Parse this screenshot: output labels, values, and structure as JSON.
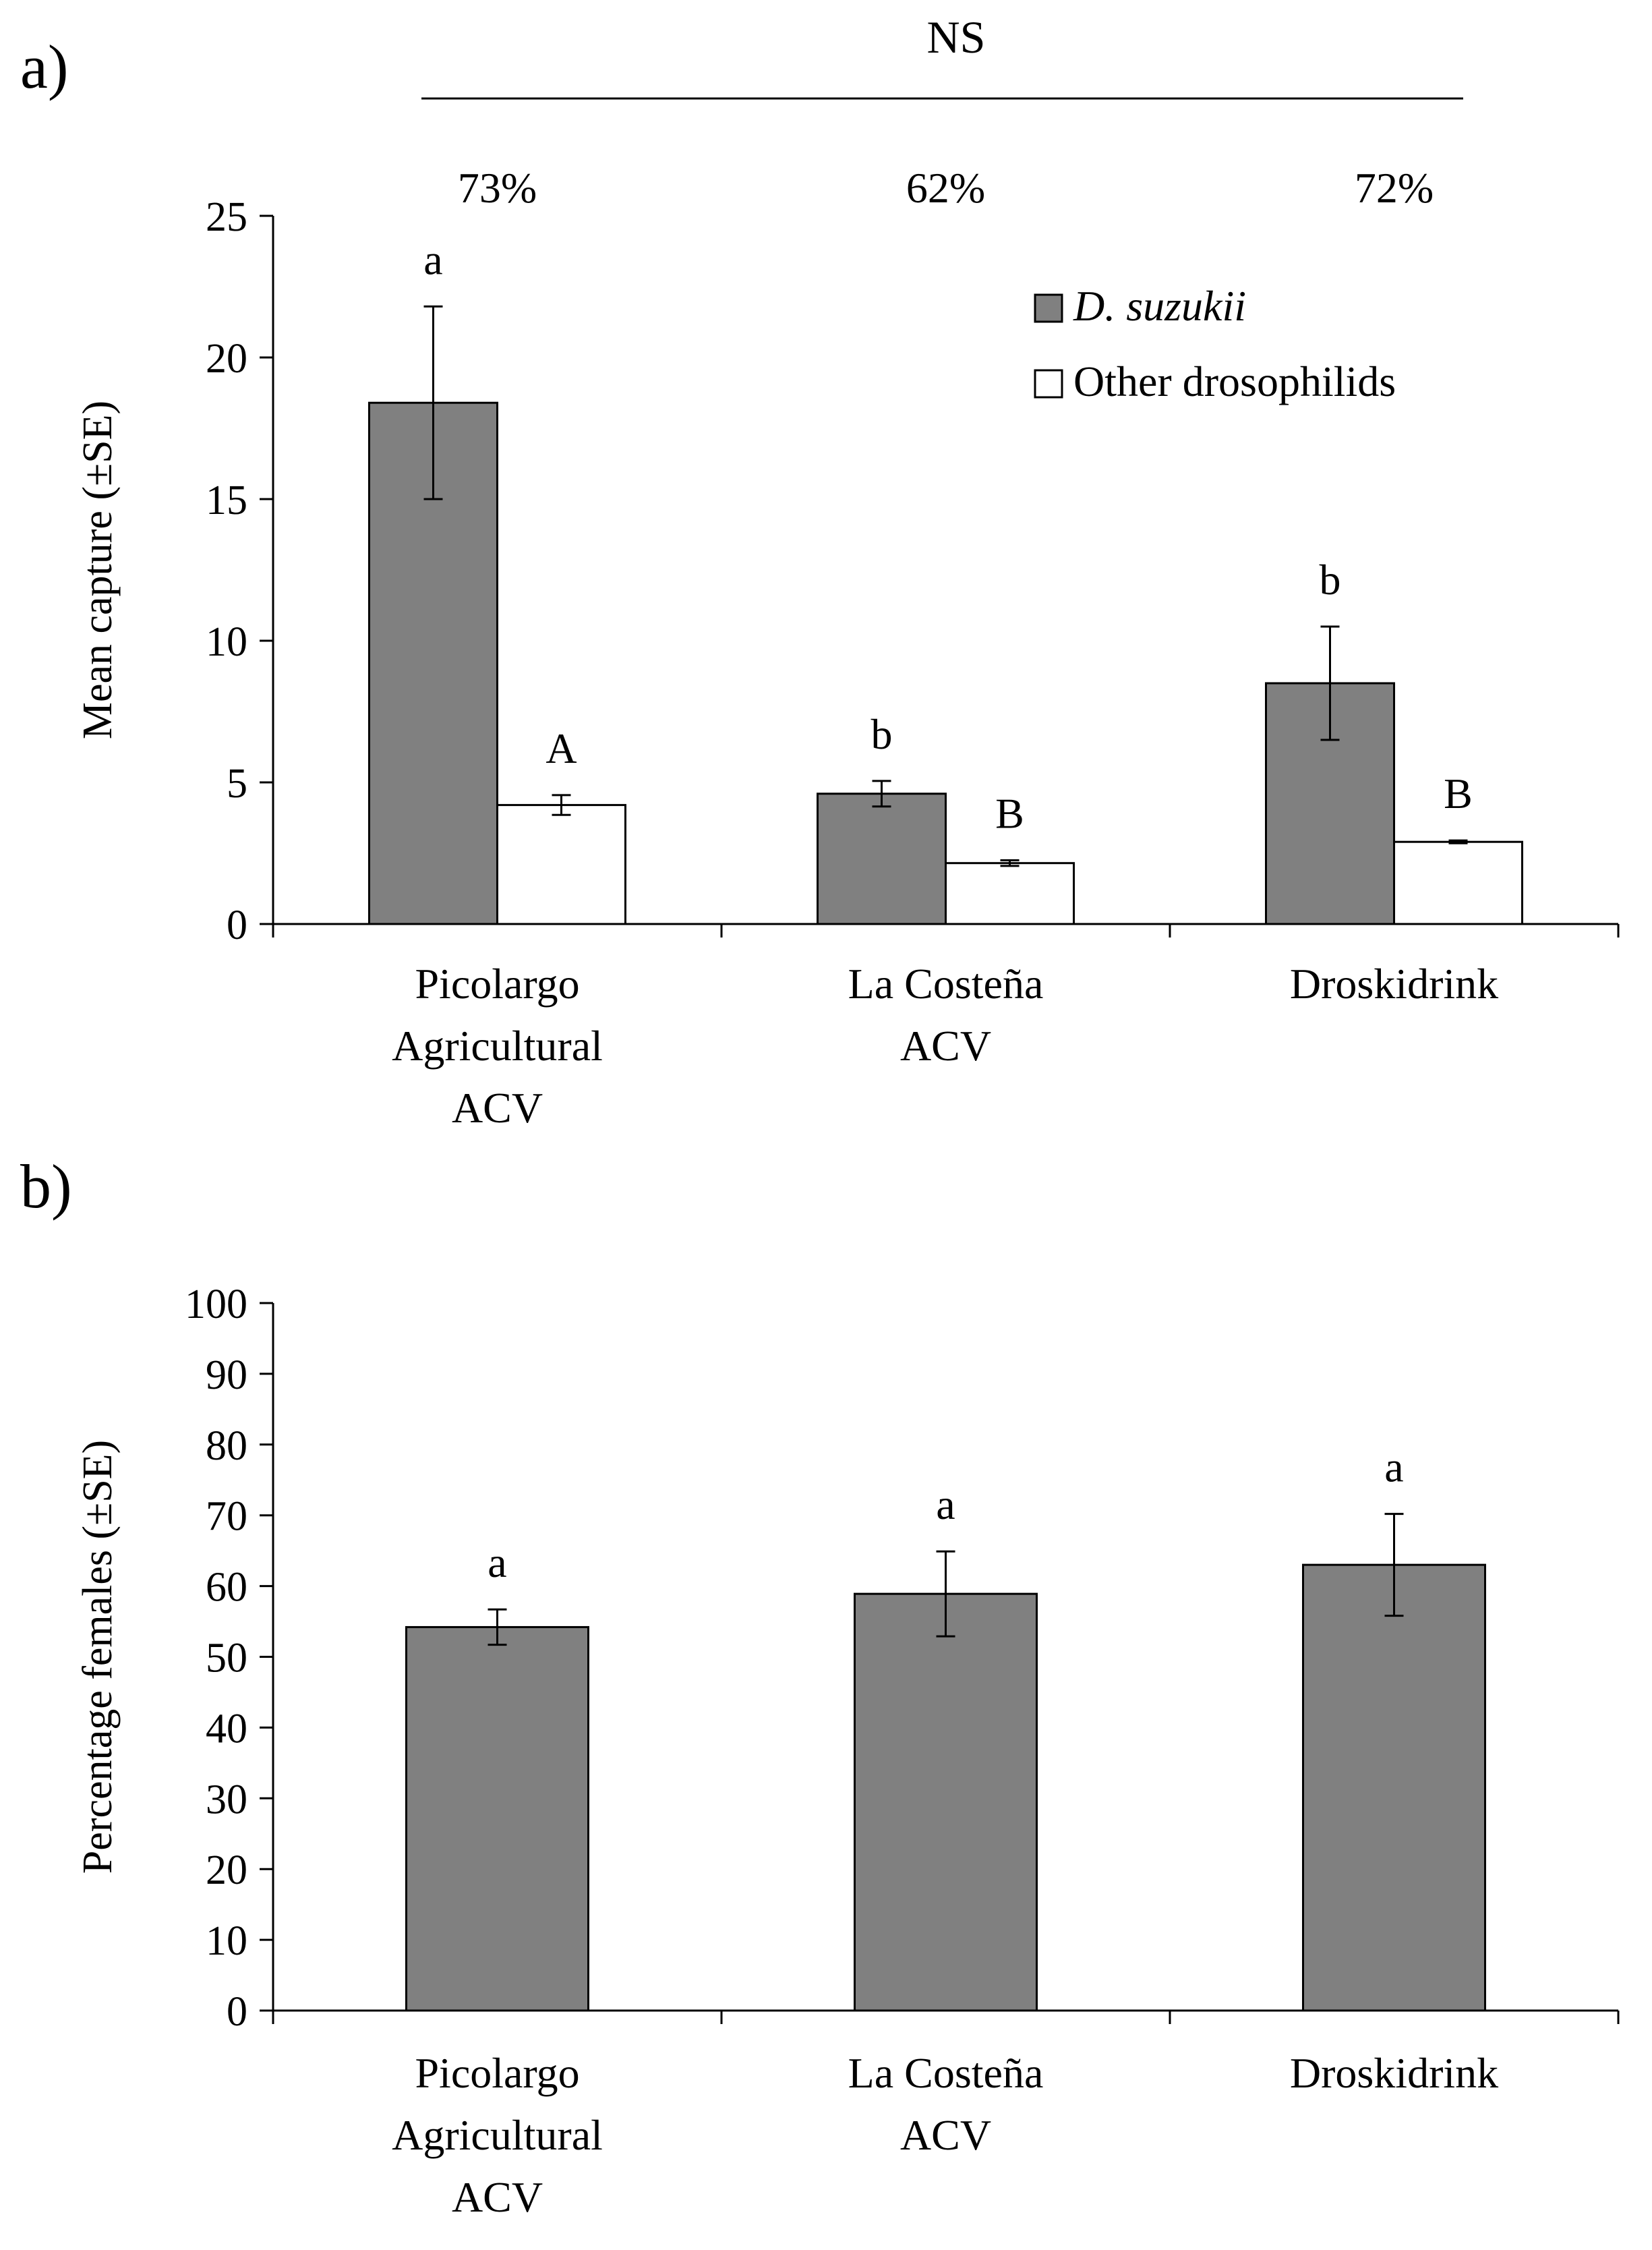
{
  "figure": {
    "panel_a_label": "a)",
    "panel_b_label": "b)",
    "significance": "NS"
  },
  "chart_data": [
    {
      "type": "bar",
      "panel": "a)",
      "categories": [
        [
          "Picolargo",
          "Agricultural",
          "ACV"
        ],
        [
          "La Costeña",
          "ACV"
        ],
        [
          "Droskidrink"
        ]
      ],
      "ylabel": "Mean capture (±SE)",
      "ylim": [
        0,
        25
      ],
      "yticks": [
        0,
        5,
        10,
        15,
        20,
        25
      ],
      "grid": false,
      "legend_position": "top-right",
      "significance_bracket": "NS",
      "percent_labels": [
        "73%",
        "62%",
        "72%"
      ],
      "series": [
        {
          "name": "D. suzukii",
          "color": "#808080",
          "values": [
            18.4,
            4.6,
            8.5
          ],
          "error": [
            3.4,
            0.45,
            2.0
          ],
          "letters": [
            "a",
            "b",
            "b"
          ]
        },
        {
          "name": "Other drosophilids",
          "color": "#ffffff",
          "values": [
            4.2,
            2.15,
            2.9
          ],
          "error": [
            0.35,
            0.1,
            0.05
          ],
          "letters": [
            "A",
            "B",
            "B"
          ]
        }
      ]
    },
    {
      "type": "bar",
      "panel": "b)",
      "categories": [
        [
          "Picolargo",
          "Agricultural",
          "ACV"
        ],
        [
          "La Costeña",
          "ACV"
        ],
        [
          "Droskidrink"
        ]
      ],
      "ylabel": "Percentage females (±SE)",
      "ylim": [
        0,
        100
      ],
      "yticks": [
        0,
        10,
        20,
        30,
        40,
        50,
        60,
        70,
        80,
        90,
        100
      ],
      "grid": false,
      "series": [
        {
          "color": "#808080",
          "values": [
            54.2,
            58.9,
            63.0
          ],
          "error": [
            2.5,
            6.0,
            7.2
          ],
          "letters": [
            "a",
            "a",
            "a"
          ]
        }
      ]
    }
  ]
}
